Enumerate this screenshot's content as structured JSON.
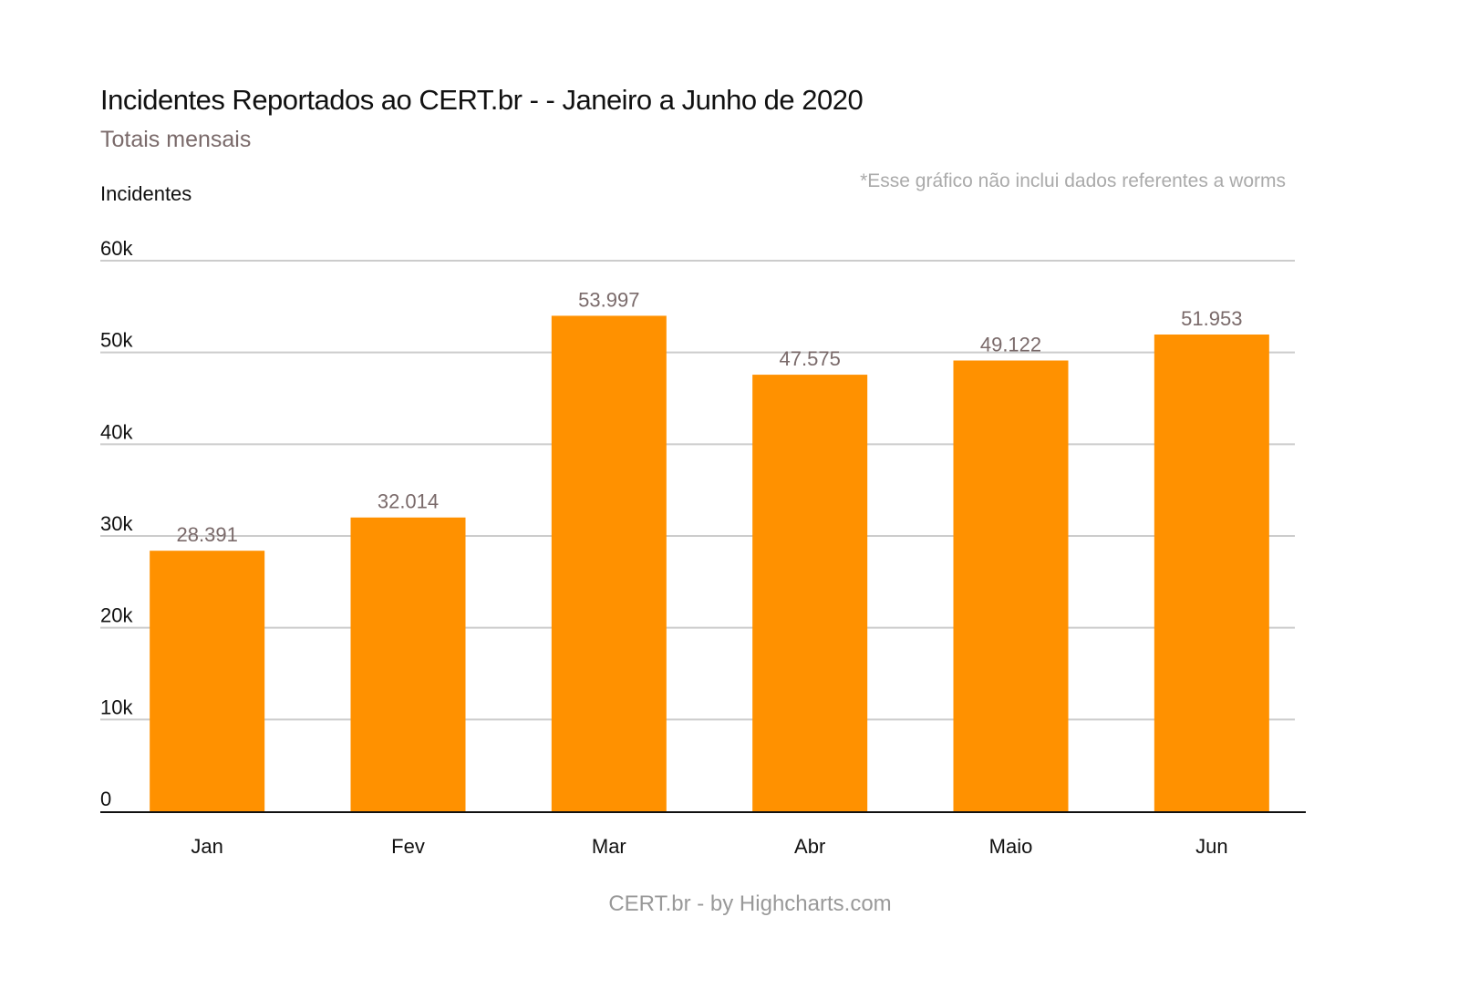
{
  "chart_data": {
    "type": "bar",
    "title": "Incidentes Reportados ao CERT.br - - Janeiro a Junho de 2020",
    "subtitle": "Totais mensais",
    "note": "*Esse gráfico não inclui dados referentes a worms",
    "ylabel": "Incidentes",
    "xlabel": "",
    "categories": [
      "Jan",
      "Fev",
      "Mar",
      "Abr",
      "Maio",
      "Jun"
    ],
    "values": [
      28391,
      32014,
      53997,
      47575,
      49122,
      51953
    ],
    "data_labels": [
      "28.391",
      "32.014",
      "53.997",
      "47.575",
      "49.122",
      "51.953"
    ],
    "ylim": [
      0,
      60000
    ],
    "yticks": [
      "0",
      "10k",
      "20k",
      "30k",
      "40k",
      "50k",
      "60k"
    ],
    "grid": true,
    "bar_color": "#ff9100",
    "credits": "CERT.br  - by Highcharts.com"
  }
}
